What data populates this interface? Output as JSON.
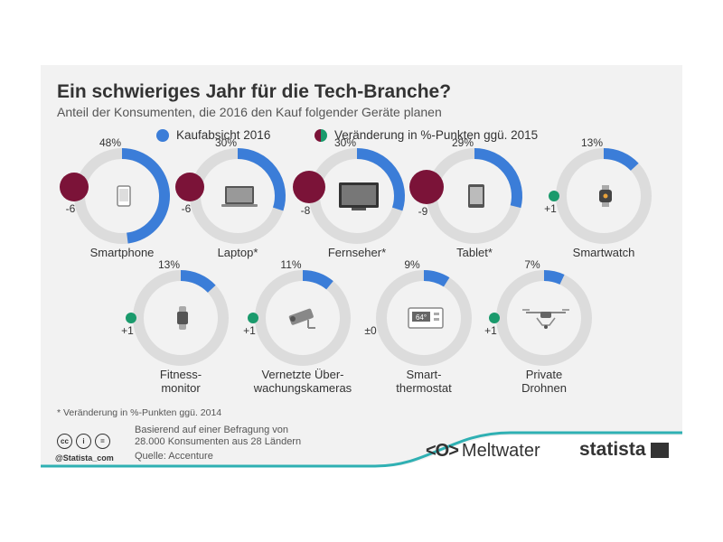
{
  "title": "Ein schwieriges Jahr für die Tech-Branche?",
  "subtitle": "Anteil der Konsumenten, die 2016 den Kauf folgender Geräte planen",
  "legend": {
    "intent": "Kaufabsicht 2016",
    "change": "Veränderung in %-Punkten ggü. 2015"
  },
  "colors": {
    "intent": "#3b7dd8",
    "track": "#dcdcdc",
    "negative": "#7b1338",
    "positive": "#1a9a6c",
    "card": "#f2f2f2"
  },
  "chart_data": {
    "type": "donut",
    "title": "Ein schwieriges Jahr für die Tech-Branche?",
    "subtitle": "Anteil der Konsumenten, die 2016 den Kauf folgender Geräte planen",
    "items": [
      {
        "label": "Smartphone",
        "value": 48,
        "value_label": "48%",
        "change": -6,
        "change_label": "-6",
        "icon": "smartphone-icon"
      },
      {
        "label": "Laptop*",
        "value": 30,
        "value_label": "30%",
        "change": -6,
        "change_label": "-6",
        "icon": "laptop-icon"
      },
      {
        "label": "Fernseher*",
        "value": 30,
        "value_label": "30%",
        "change": -8,
        "change_label": "-8",
        "icon": "tv-icon"
      },
      {
        "label": "Tablet*",
        "value": 29,
        "value_label": "29%",
        "change": -9,
        "change_label": "-9",
        "icon": "tablet-icon"
      },
      {
        "label": "Smartwatch",
        "value": 13,
        "value_label": "13%",
        "change": 1,
        "change_label": "+1",
        "icon": "smartwatch-icon"
      },
      {
        "label": "Fitness-\nmonitor",
        "value": 13,
        "value_label": "13%",
        "change": 1,
        "change_label": "+1",
        "icon": "fitness-tracker-icon"
      },
      {
        "label": "Vernetzte Über-\nwachungskameras",
        "value": 11,
        "value_label": "11%",
        "change": 1,
        "change_label": "+1",
        "icon": "camera-icon"
      },
      {
        "label": "Smart-\nthermostat",
        "value": 9,
        "value_label": "9%",
        "change": 0,
        "change_label": "±0",
        "icon": "thermostat-icon"
      },
      {
        "label": "Private\nDrohnen",
        "value": 7,
        "value_label": "7%",
        "change": 1,
        "change_label": "+1",
        "icon": "drone-icon"
      }
    ],
    "thermostat_display": "64°"
  },
  "footnote": "* Veränderung in %-Punkten ggü. 2014",
  "source": {
    "line1": "Basierend auf einer Befragung von",
    "line2": "28.000 Konsumenten aus 28 Ländern",
    "line3": "Quelle: Accenture"
  },
  "handle": "@Statista_com",
  "brands": {
    "meltwater": "Meltwater",
    "statista": "statista"
  }
}
